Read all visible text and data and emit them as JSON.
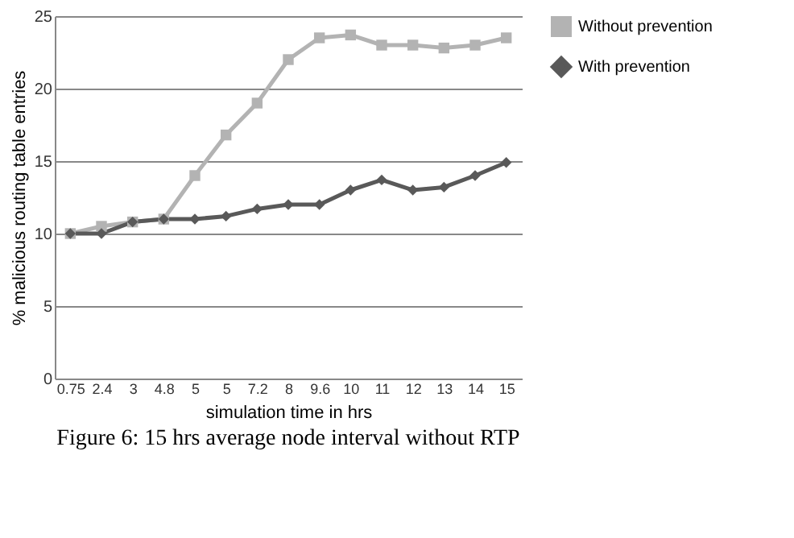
{
  "chart_data": {
    "type": "line",
    "xlabel": "simulation time in hrs",
    "ylabel": "% malicious routing table entries",
    "categories": [
      "0.75",
      "2.4",
      "3",
      "4.8",
      "5",
      "5",
      "7.2",
      "8",
      "9.6",
      "10",
      "11",
      "12",
      "13",
      "14",
      "15"
    ],
    "series": [
      {
        "name": "Without prevention",
        "color": "#b3b3b3",
        "marker": "square",
        "values": [
          10,
          10.5,
          10.8,
          11,
          14,
          16.8,
          19,
          22,
          23.5,
          23.7,
          23,
          23,
          22.8,
          23,
          23.5
        ]
      },
      {
        "name": "With prevention",
        "color": "#595959",
        "marker": "diamond",
        "values": [
          10,
          10,
          10.8,
          11,
          11,
          11.2,
          11.7,
          12,
          12,
          13,
          13.7,
          13,
          13.2,
          14,
          14.9
        ]
      }
    ],
    "ylim": [
      0,
      25
    ],
    "yticks": [
      0,
      5,
      10,
      15,
      20,
      25
    ],
    "grid": "y",
    "legend": "right",
    "annotations": [
      "Figure 6: 15 hrs average node interval without RTP"
    ]
  }
}
